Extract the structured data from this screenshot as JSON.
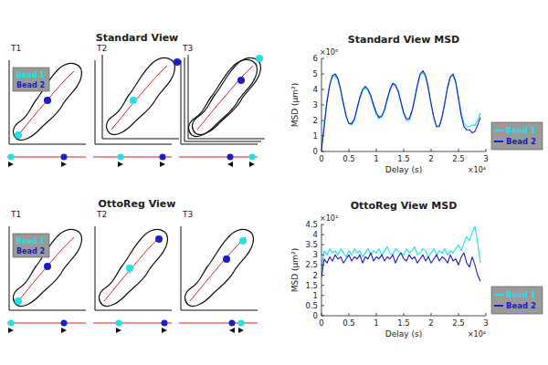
{
  "chart_data": [
    {
      "type": "line",
      "title": "Standard View MSD",
      "x_label": "Delay (s)",
      "y_label": "MSD (μm²)",
      "annotations": {
        "y": "×10⁶",
        "x": "×10⁴"
      },
      "x": [
        0,
        0.05,
        0.1,
        0.15,
        0.2,
        0.25,
        0.3,
        0.35,
        0.4,
        0.45,
        0.5,
        0.55,
        0.6,
        0.65,
        0.7,
        0.75,
        0.8,
        0.85,
        0.9,
        0.95,
        1,
        1.05,
        1.1,
        1.15,
        1.2,
        1.25,
        1.3,
        1.35,
        1.4,
        1.45,
        1.5,
        1.55,
        1.6,
        1.65,
        1.7,
        1.75,
        1.8,
        1.85,
        1.9,
        1.95,
        2,
        2.05,
        2.1,
        2.15,
        2.2,
        2.25,
        2.3,
        2.35,
        2.4,
        2.45,
        2.5,
        2.55,
        2.6,
        2.65,
        2.7,
        2.75,
        2.8,
        2.85,
        2.9
      ],
      "series": [
        {
          "name": "Bead 1",
          "color": "#22e0e8",
          "values": [
            0.2,
            1.8,
            3.3,
            4.3,
            4.8,
            4.9,
            4.6,
            3.9,
            3.0,
            2.2,
            1.8,
            1.7,
            2.0,
            2.7,
            3.4,
            3.9,
            4.1,
            3.9,
            3.5,
            2.9,
            2.4,
            2.1,
            2.2,
            2.6,
            3.3,
            3.9,
            4.3,
            4.2,
            3.8,
            3.1,
            2.4,
            2.0,
            2.0,
            2.5,
            3.3,
            4.2,
            4.9,
            5.1,
            4.8,
            4.0,
            3.0,
            2.1,
            1.6,
            1.7,
            2.3,
            3.2,
            4.2,
            4.8,
            4.9,
            4.4,
            3.5,
            2.5,
            1.8,
            1.6,
            1.6,
            1.7,
            1.7,
            2.0,
            2.5
          ]
        },
        {
          "name": "Bead 2",
          "color": "#1c1cc8",
          "values": [
            0.1,
            1.6,
            3.2,
            4.3,
            4.9,
            5.0,
            4.7,
            4.0,
            3.1,
            2.3,
            1.8,
            1.8,
            2.1,
            2.8,
            3.5,
            4.0,
            4.2,
            4.0,
            3.6,
            3.0,
            2.5,
            2.2,
            2.3,
            2.7,
            3.4,
            4.0,
            4.4,
            4.3,
            3.9,
            3.2,
            2.5,
            2.1,
            2.1,
            2.6,
            3.4,
            4.3,
            5.0,
            5.2,
            4.9,
            4.1,
            3.1,
            2.2,
            1.6,
            1.6,
            2.2,
            3.1,
            4.1,
            4.8,
            5.0,
            4.5,
            3.4,
            2.3,
            1.6,
            1.4,
            1.4,
            1.2,
            1.3,
            1.7,
            2.2
          ]
        }
      ],
      "xlim": [
        0,
        3
      ],
      "xticks": [
        0,
        0.5,
        1,
        1.5,
        2,
        2.5,
        3
      ],
      "ylim": [
        0,
        6
      ],
      "yticks": [
        0,
        1,
        2,
        3,
        4,
        5,
        6
      ],
      "grid": false,
      "legend": "right"
    },
    {
      "type": "line",
      "title": "OttoReg View MSD",
      "x_label": "Delay (s)",
      "y_label": "MSD (μm²)",
      "annotations": {
        "y": "×10¹",
        "x": "×10⁴"
      },
      "x": [
        0,
        0.05,
        0.1,
        0.15,
        0.2,
        0.25,
        0.3,
        0.35,
        0.4,
        0.45,
        0.5,
        0.55,
        0.6,
        0.65,
        0.7,
        0.75,
        0.8,
        0.85,
        0.9,
        0.95,
        1,
        1.05,
        1.1,
        1.15,
        1.2,
        1.25,
        1.3,
        1.35,
        1.4,
        1.45,
        1.5,
        1.55,
        1.6,
        1.65,
        1.7,
        1.75,
        1.8,
        1.85,
        1.9,
        1.95,
        2,
        2.05,
        2.1,
        2.15,
        2.2,
        2.25,
        2.3,
        2.35,
        2.4,
        2.45,
        2.5,
        2.55,
        2.6,
        2.65,
        2.7,
        2.75,
        2.8,
        2.85,
        2.9
      ],
      "series": [
        {
          "name": "Bead 1",
          "color": "#22e0e8",
          "values": [
            2.3,
            3.2,
            3.0,
            3.3,
            3.1,
            3.2,
            3.0,
            3.3,
            3.1,
            2.9,
            3.2,
            3.0,
            3.3,
            3.1,
            3.2,
            2.9,
            3.1,
            3.3,
            3.0,
            3.2,
            3.1,
            3.3,
            3.0,
            3.2,
            3.4,
            3.1,
            3.0,
            3.3,
            3.2,
            3.1,
            3.0,
            3.3,
            3.1,
            3.2,
            3.4,
            3.0,
            3.1,
            3.3,
            3.2,
            2.9,
            3.1,
            3.3,
            3.0,
            3.2,
            3.1,
            3.3,
            3.0,
            3.2,
            3.1,
            3.3,
            3.5,
            3.2,
            3.6,
            3.9,
            3.7,
            4.1,
            4.4,
            3.6,
            2.6
          ]
        },
        {
          "name": "Bead 2",
          "color": "#1c1cc8",
          "values": [
            1.9,
            2.8,
            2.6,
            2.9,
            2.7,
            3.0,
            2.8,
            2.9,
            2.6,
            2.8,
            3.0,
            2.7,
            2.9,
            2.8,
            3.0,
            2.6,
            2.9,
            2.8,
            3.1,
            2.7,
            2.9,
            2.8,
            3.0,
            2.7,
            2.9,
            2.8,
            3.0,
            2.6,
            2.9,
            3.1,
            2.8,
            2.7,
            3.0,
            2.8,
            2.9,
            2.6,
            2.8,
            3.0,
            2.7,
            2.9,
            2.6,
            2.8,
            3.0,
            2.7,
            2.9,
            2.8,
            2.6,
            3.0,
            2.7,
            2.8,
            2.5,
            2.9,
            3.1,
            2.6,
            2.4,
            2.9,
            2.5,
            2.0,
            1.7
          ]
        }
      ],
      "xlim": [
        0,
        3
      ],
      "xticks": [
        0,
        0.5,
        1,
        1.5,
        2,
        2.5,
        3
      ],
      "ylim": [
        0,
        4.5
      ],
      "yticks": [
        0,
        0.5,
        1,
        1.5,
        2,
        2.5,
        3,
        3.5,
        4,
        4.5
      ],
      "grid": false,
      "legend": "right"
    }
  ],
  "diagrams": [
    {
      "title": "Standard View",
      "panels": [
        "T1",
        "T2",
        "T3"
      ],
      "legend": [
        "Bead 1",
        "Bead 2"
      ]
    },
    {
      "title": "OttoReg View",
      "panels": [
        "T1",
        "T2",
        "T3"
      ],
      "legend": [
        "Bead 1",
        "Bead 2"
      ]
    }
  ]
}
